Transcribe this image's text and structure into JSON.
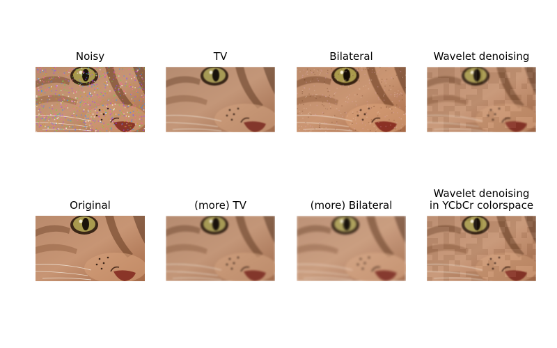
{
  "panels": [
    {
      "title": [
        "Noisy"
      ],
      "variant": "noisy"
    },
    {
      "title": [
        "TV"
      ],
      "variant": "tv"
    },
    {
      "title": [
        "Bilateral"
      ],
      "variant": "bilateral"
    },
    {
      "title": [
        "Wavelet denoising"
      ],
      "variant": "wavelet"
    },
    {
      "title": [
        "Original"
      ],
      "variant": "original"
    },
    {
      "title": [
        "(more) TV"
      ],
      "variant": "tv2"
    },
    {
      "title": [
        "(more) Bilateral"
      ],
      "variant": "bilateral2"
    },
    {
      "title": [
        "Wavelet denoising",
        "in YCbCr colorspace"
      ],
      "variant": "ycbcr"
    }
  ]
}
